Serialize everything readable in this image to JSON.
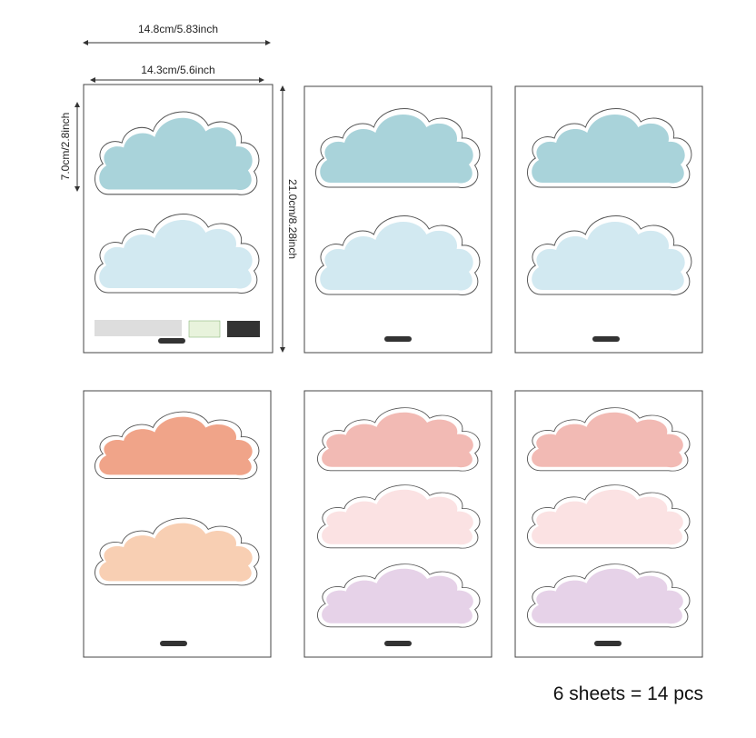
{
  "dimensions": {
    "outer_width": "14.8cm/5.83inch",
    "inner_width": "14.3cm/5.6inch",
    "cloud_height": "7.0cm/2.8inch",
    "sheet_height": "21.0cm/8.28inch"
  },
  "caption": "6 sheets = 14 pcs"
}
